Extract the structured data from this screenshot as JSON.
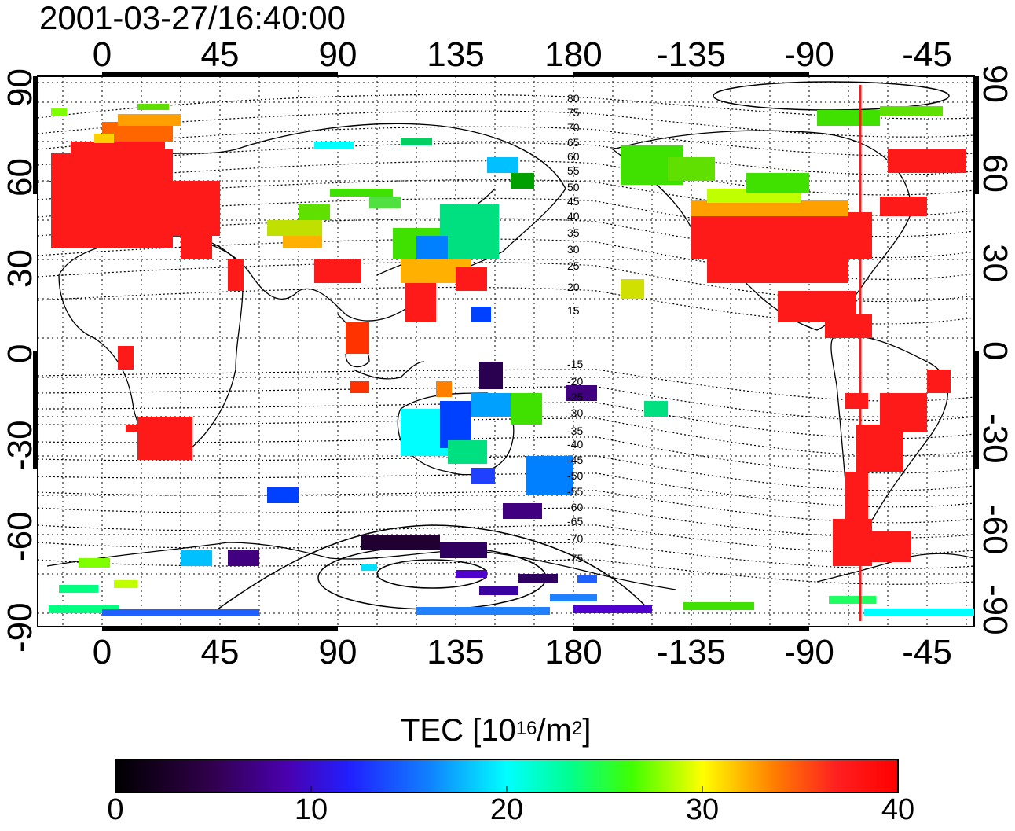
{
  "title": "2001-03-27/16:40:00",
  "lon_ticks": [
    "0",
    "45",
    "90",
    "135",
    "180",
    "-135",
    "-90",
    "-45"
  ],
  "lat_ticks": [
    "90",
    "60",
    "30",
    "0",
    "-30",
    "-60",
    "-90"
  ],
  "contour_labels": [
    "80",
    "75",
    "70",
    "65",
    "60",
    "55",
    "50",
    "45",
    "40",
    "35",
    "30",
    "25",
    "20",
    "15",
    "-15",
    "-20",
    "-25",
    "-30",
    "-35",
    "-40",
    "-45",
    "-50",
    "-55",
    "-60",
    "-65",
    "-70",
    "-75"
  ],
  "colorbar": {
    "title_prefix": "TEC  [10",
    "title_exp1": "16",
    "title_mid": "/m",
    "title_exp2": "2",
    "title_suffix": "]",
    "ticks": [
      "0",
      "10",
      "20",
      "30",
      "40"
    ],
    "colors": [
      "#000000",
      "#3a0066",
      "#5a00cc",
      "#0000ff",
      "#0080ff",
      "#00ffff",
      "#00ff80",
      "#00ff00",
      "#80ff00",
      "#ffff00",
      "#ff8000",
      "#ff0000"
    ]
  },
  "colors": {
    "frame": "#000000",
    "grid": "#000000",
    "meridian_marker": "#ff0000",
    "high_tec": "#ff1a1a"
  }
}
